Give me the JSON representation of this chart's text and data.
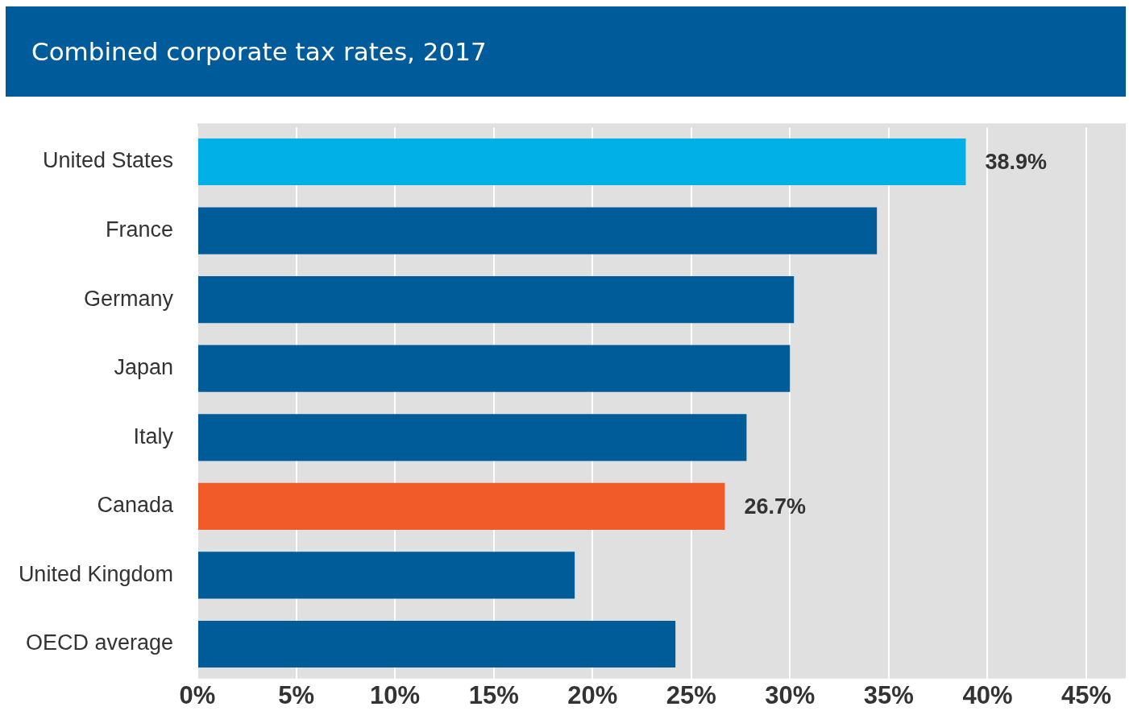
{
  "chart_data": {
    "type": "bar",
    "orientation": "horizontal",
    "title": "Combined corporate tax rates, 2017",
    "categories": [
      "United States",
      "France",
      "Germany",
      "Japan",
      "Italy",
      "Canada",
      "United Kingdom",
      "OECD average"
    ],
    "values": [
      38.9,
      34.4,
      30.2,
      30.0,
      27.8,
      26.7,
      19.1,
      24.2
    ],
    "colors": [
      "#00b0e6",
      "#005b99",
      "#005b99",
      "#005b99",
      "#005b99",
      "#f15a29",
      "#005b99",
      "#005b99"
    ],
    "value_labels": [
      "38.9%",
      null,
      null,
      null,
      null,
      "26.7%",
      null,
      null
    ],
    "xlim": [
      0,
      47
    ],
    "xticks": [
      {
        "value": 0,
        "label": "0%"
      },
      {
        "value": 5,
        "label": "5%"
      },
      {
        "value": 10,
        "label": "10%"
      },
      {
        "value": 15,
        "label": "15%"
      },
      {
        "value": 20,
        "label": "20%"
      },
      {
        "value": 25,
        "label": "25%"
      },
      {
        "value": 30,
        "label": "30%"
      },
      {
        "value": 35,
        "label": "35%"
      },
      {
        "value": 40,
        "label": "40%"
      },
      {
        "value": 45,
        "label": "45%"
      }
    ],
    "grid": "x",
    "legend": false
  }
}
